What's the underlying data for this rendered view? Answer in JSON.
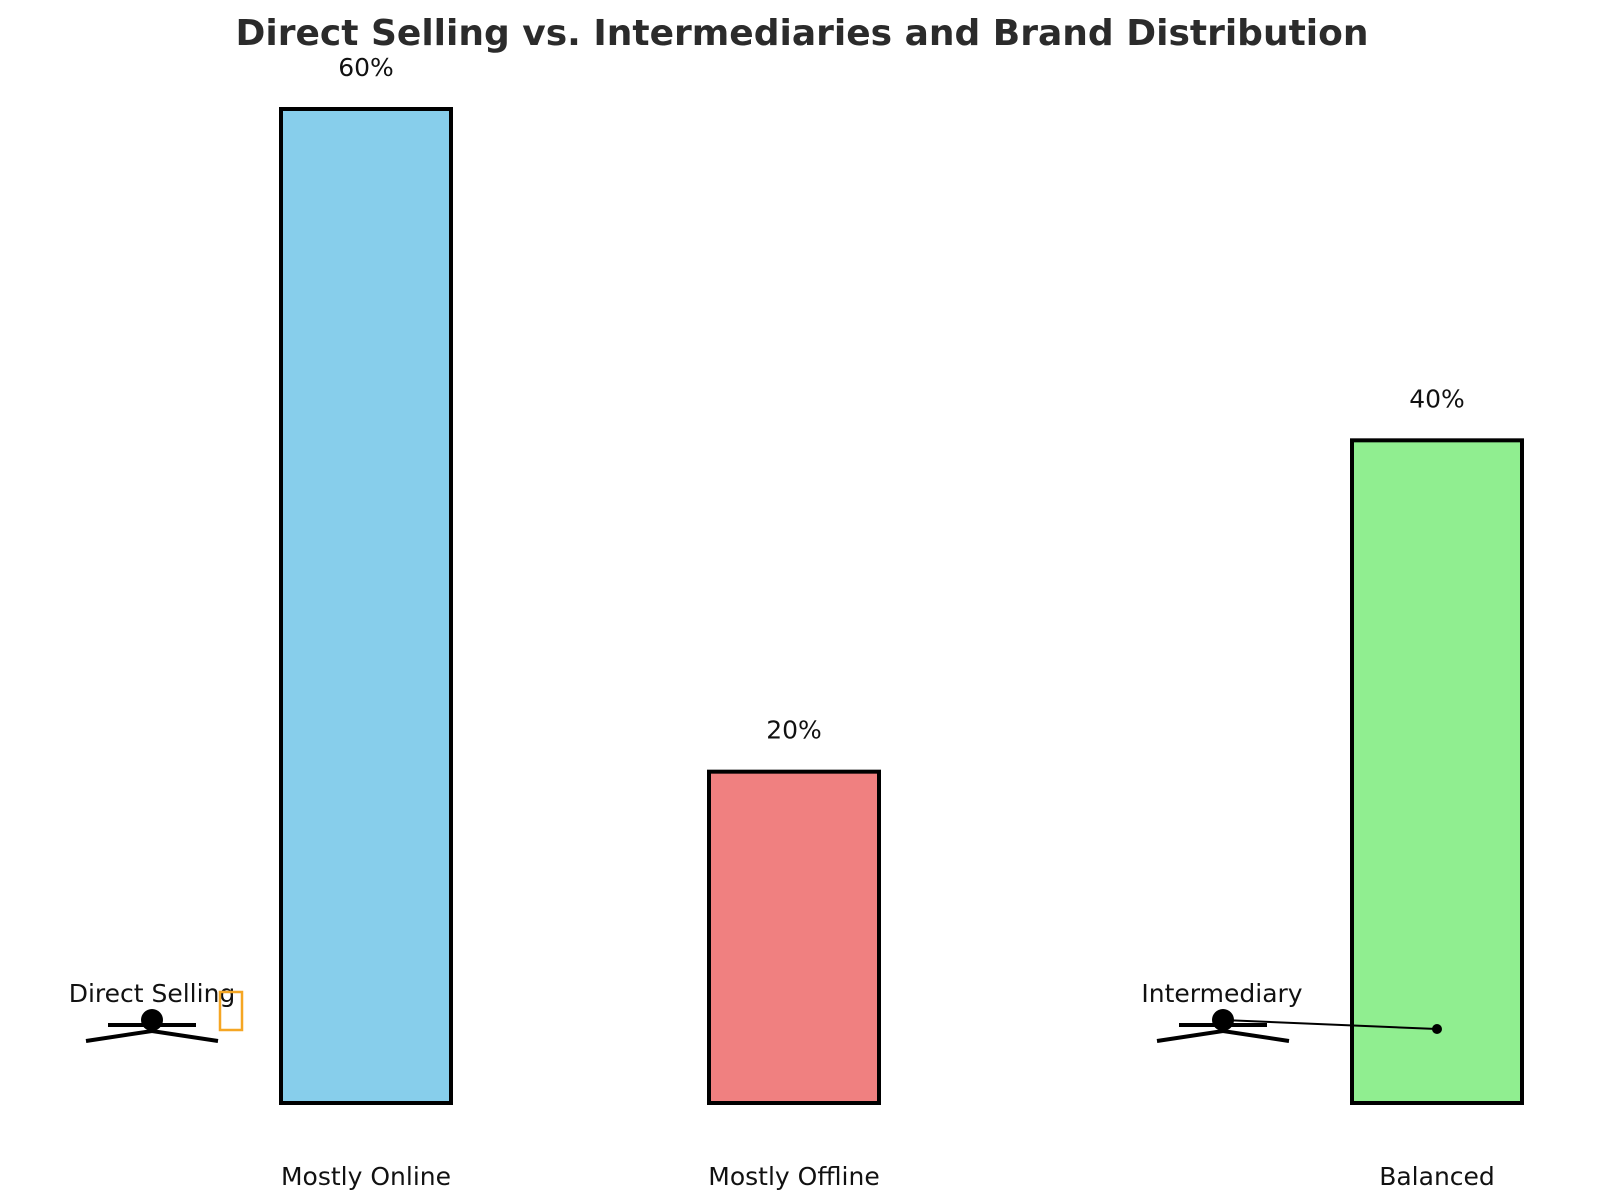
{
  "chart_data": {
    "type": "bar",
    "title": "Direct Selling vs. Intermediaries and Brand Distribution",
    "categories": [
      "Mostly Online",
      "Mostly Offline",
      "Balanced"
    ],
    "values": [
      60,
      20,
      40
    ],
    "value_labels": [
      "60%",
      "20%",
      "40%"
    ],
    "colors": [
      "#87ceeb",
      "#f08080",
      "#90ee90"
    ],
    "ylim": [
      0,
      60
    ],
    "grid": false,
    "xlabel": "",
    "ylabel": "",
    "annotations": [
      {
        "text": "Direct Selling",
        "icon": "person-scale-icon",
        "accent_icon": "missing-glyph-box-icon",
        "accent_color": "#f5a623"
      },
      {
        "text": "Intermediary",
        "icon": "person-scale-icon",
        "connects_to": "Balanced"
      }
    ]
  }
}
